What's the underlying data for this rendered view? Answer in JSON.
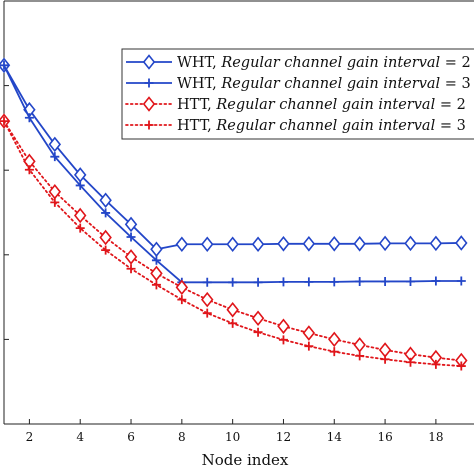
{
  "chart_data": {
    "type": "line",
    "xlabel": "Node index",
    "ylabel": "",
    "xlim": [
      1,
      19.5
    ],
    "ylim": [
      0,
      1.0
    ],
    "x_ticks": [
      2,
      4,
      6,
      8,
      10,
      12,
      14,
      16,
      18
    ],
    "grid": false,
    "legend_position": "top-right",
    "x": [
      1,
      2,
      3,
      4,
      5,
      6,
      7,
      8,
      9,
      10,
      11,
      12,
      13,
      14,
      15,
      16,
      17,
      18,
      19
    ],
    "series": [
      {
        "name": "WHT, Regular channel gain interval = 2",
        "legend_prefix": "WHT, ",
        "legend_italic": "Regular channel gain interval",
        "legend_suffix": " = 2",
        "color": "#2346c8",
        "line": "solid",
        "marker": "diamond",
        "values": [
          0.848,
          0.743,
          0.661,
          0.589,
          0.529,
          0.472,
          0.413,
          0.425,
          0.425,
          0.425,
          0.425,
          0.426,
          0.426,
          0.426,
          0.426,
          0.427,
          0.427,
          0.427,
          0.428
        ]
      },
      {
        "name": "WHT, Regular channel gain interval = 3",
        "legend_prefix": "WHT, ",
        "legend_italic": "Regular channel gain interval",
        "legend_suffix": " = 3",
        "color": "#2346c8",
        "line": "solid",
        "marker": "plus",
        "values": [
          0.848,
          0.724,
          0.632,
          0.564,
          0.499,
          0.442,
          0.387,
          0.335,
          0.335,
          0.335,
          0.335,
          0.336,
          0.336,
          0.336,
          0.337,
          0.337,
          0.337,
          0.338,
          0.338
        ]
      },
      {
        "name": "HTT, Regular channel gain interval = 2",
        "legend_prefix": "HTT, ",
        "legend_italic": "Regular channel gain interval",
        "legend_suffix": " = 2",
        "color": "#e0151a",
        "line": "dotted",
        "marker": "diamond",
        "values": [
          0.716,
          0.621,
          0.549,
          0.493,
          0.441,
          0.395,
          0.356,
          0.323,
          0.294,
          0.27,
          0.25,
          0.231,
          0.215,
          0.2,
          0.187,
          0.175,
          0.165,
          0.157,
          0.15
        ]
      },
      {
        "name": "HTT, Regular channel gain interval = 3",
        "legend_prefix": "HTT, ",
        "legend_italic": "Regular channel gain interval",
        "legend_suffix": " = 3",
        "color": "#e0151a",
        "line": "dotted",
        "marker": "plus",
        "values": [
          0.716,
          0.601,
          0.524,
          0.463,
          0.411,
          0.367,
          0.329,
          0.294,
          0.262,
          0.238,
          0.217,
          0.199,
          0.184,
          0.171,
          0.161,
          0.153,
          0.146,
          0.141,
          0.137
        ]
      }
    ]
  }
}
